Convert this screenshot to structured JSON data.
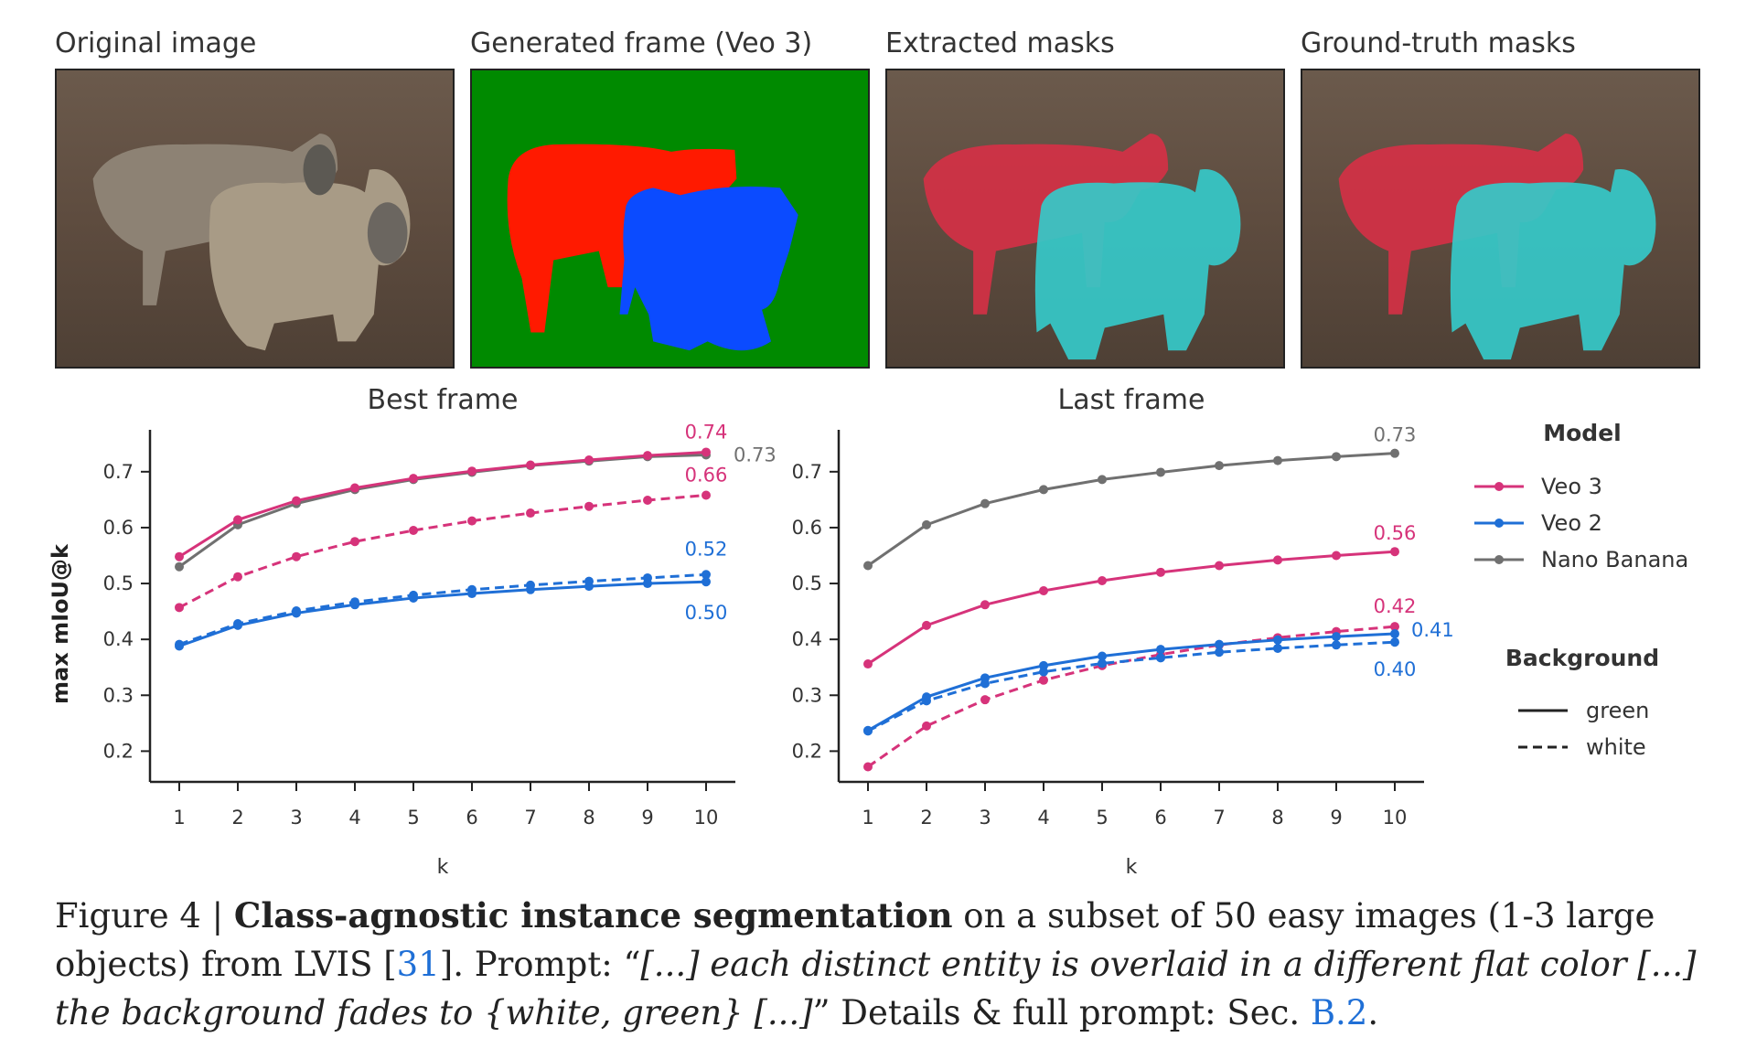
{
  "panels": [
    {
      "title": "Original image",
      "kind": "photo"
    },
    {
      "title": "Generated frame (Veo 3)",
      "kind": "generated"
    },
    {
      "title": "Extracted masks",
      "kind": "masks"
    },
    {
      "title": "Ground-truth masks",
      "kind": "masks"
    }
  ],
  "colors": {
    "veo3": "#d6337a",
    "veo2": "#1f6fd6",
    "nano": "#707070",
    "gen_green": "#008a00",
    "gen_red": "#ff1a00",
    "gen_blue": "#0b4bff",
    "mask_red": "#d63046",
    "mask_cyan": "#35c9c9"
  },
  "chart_data": [
    {
      "type": "line",
      "title": "Best frame",
      "xlabel": "k",
      "ylabel": "max mIoU@k",
      "x": [
        1,
        2,
        3,
        4,
        5,
        6,
        7,
        8,
        9,
        10
      ],
      "xlim": [
        0.5,
        10.5
      ],
      "ylim": [
        0.145,
        0.775
      ],
      "yticks": [
        0.2,
        0.3,
        0.4,
        0.5,
        0.6,
        0.7
      ],
      "series": [
        {
          "model": "Nano Banana",
          "background": "green",
          "values": [
            0.53,
            0.605,
            0.643,
            0.668,
            0.686,
            0.699,
            0.711,
            0.719,
            0.727,
            0.73
          ],
          "end_label": "0.73"
        },
        {
          "model": "Veo 3",
          "background": "green",
          "values": [
            0.548,
            0.614,
            0.648,
            0.671,
            0.688,
            0.701,
            0.712,
            0.721,
            0.729,
            0.735
          ],
          "end_label": "0.74"
        },
        {
          "model": "Veo 3",
          "background": "white",
          "values": [
            0.457,
            0.512,
            0.548,
            0.575,
            0.595,
            0.612,
            0.626,
            0.638,
            0.649,
            0.658
          ],
          "end_label": "0.66"
        },
        {
          "model": "Veo 2",
          "background": "white",
          "values": [
            0.391,
            0.428,
            0.451,
            0.467,
            0.479,
            0.489,
            0.497,
            0.504,
            0.51,
            0.516
          ],
          "end_label": "0.52"
        },
        {
          "model": "Veo 2",
          "background": "green",
          "values": [
            0.388,
            0.425,
            0.447,
            0.462,
            0.474,
            0.482,
            0.489,
            0.495,
            0.5,
            0.503
          ],
          "end_label": "0.50"
        }
      ]
    },
    {
      "type": "line",
      "title": "Last frame",
      "xlabel": "k",
      "ylabel": "",
      "x": [
        1,
        2,
        3,
        4,
        5,
        6,
        7,
        8,
        9,
        10
      ],
      "xlim": [
        0.5,
        10.5
      ],
      "ylim": [
        0.145,
        0.775
      ],
      "yticks": [
        0.2,
        0.3,
        0.4,
        0.5,
        0.6,
        0.7
      ],
      "series": [
        {
          "model": "Nano Banana",
          "background": "green",
          "values": [
            0.532,
            0.605,
            0.643,
            0.668,
            0.686,
            0.699,
            0.711,
            0.72,
            0.727,
            0.733
          ],
          "end_label": "0.73"
        },
        {
          "model": "Veo 3",
          "background": "green",
          "values": [
            0.356,
            0.425,
            0.462,
            0.487,
            0.505,
            0.52,
            0.532,
            0.542,
            0.55,
            0.557
          ],
          "end_label": "0.56"
        },
        {
          "model": "Veo 3",
          "background": "white",
          "values": [
            0.172,
            0.245,
            0.292,
            0.327,
            0.353,
            0.373,
            0.39,
            0.403,
            0.414,
            0.423
          ],
          "end_label": "0.42"
        },
        {
          "model": "Veo 2",
          "background": "green",
          "values": [
            0.237,
            0.297,
            0.331,
            0.353,
            0.37,
            0.382,
            0.391,
            0.399,
            0.405,
            0.41
          ],
          "end_label": "0.41"
        },
        {
          "model": "Veo 2",
          "background": "white",
          "values": [
            0.236,
            0.29,
            0.321,
            0.342,
            0.357,
            0.367,
            0.377,
            0.384,
            0.39,
            0.395
          ],
          "end_label": "0.40"
        }
      ]
    }
  ],
  "legend": {
    "model_title": "Model",
    "models": [
      {
        "name": "Veo 3",
        "color_key": "veo3"
      },
      {
        "name": "Veo 2",
        "color_key": "veo2"
      },
      {
        "name": "Nano Banana",
        "color_key": "nano"
      }
    ],
    "background_title": "Background",
    "backgrounds": [
      {
        "name": "green",
        "style": "solid"
      },
      {
        "name": "white",
        "style": "dashed"
      }
    ]
  },
  "caption": {
    "fig": "Figure 4 | ",
    "bold": "Class-agnostic instance segmentation",
    "text1": " on a subset of 50 easy images (1-3 large objects) from LVIS [",
    "ref1": "31",
    "text2": "]. Prompt: “",
    "italic1": "[...] each distinct entity is overlaid in a different flat color [...] the background fades to {white, green} [...]",
    "text3": "” Details & full prompt: Sec. ",
    "ref2": "B.2",
    "text4": "."
  }
}
